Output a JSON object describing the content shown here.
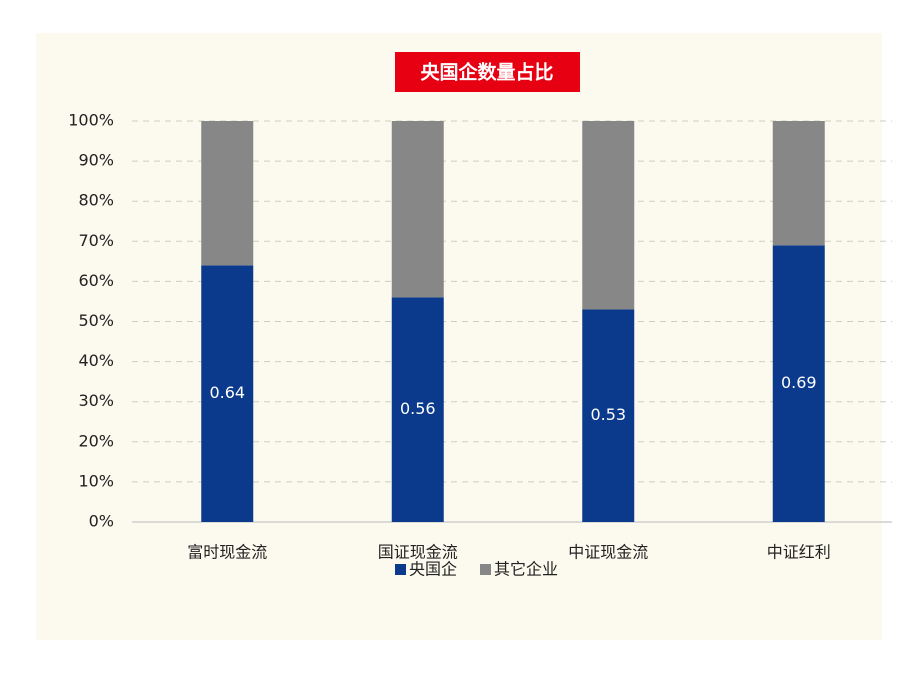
{
  "chart_data": {
    "type": "stacked_bar",
    "title": "央国企数量占比",
    "categories": [
      "富时现金流",
      "国证现金流",
      "中证现金流",
      "中证红利"
    ],
    "series": [
      {
        "name": "央国企",
        "color": "#0b3a8c",
        "values": [
          0.64,
          0.56,
          0.53,
          0.69
        ]
      },
      {
        "name": "其它企业",
        "color": "#878787",
        "values": [
          0.36,
          0.44,
          0.47,
          0.31
        ]
      }
    ],
    "ylim": [
      0,
      1
    ],
    "yticks": [
      {
        "value": 0,
        "label": "0%"
      },
      {
        "value": 0.1,
        "label": "10%"
      },
      {
        "value": 0.2,
        "label": "20%"
      },
      {
        "value": 0.3,
        "label": "30%"
      },
      {
        "value": 0.4,
        "label": "40%"
      },
      {
        "value": 0.5,
        "label": "50%"
      },
      {
        "value": 0.6,
        "label": "60%"
      },
      {
        "value": 0.7,
        "label": "70%"
      },
      {
        "value": 0.8,
        "label": "80%"
      },
      {
        "value": 0.9,
        "label": "90%"
      },
      {
        "value": 1,
        "label": "100%"
      }
    ],
    "grid": true,
    "legend": "bottom"
  }
}
